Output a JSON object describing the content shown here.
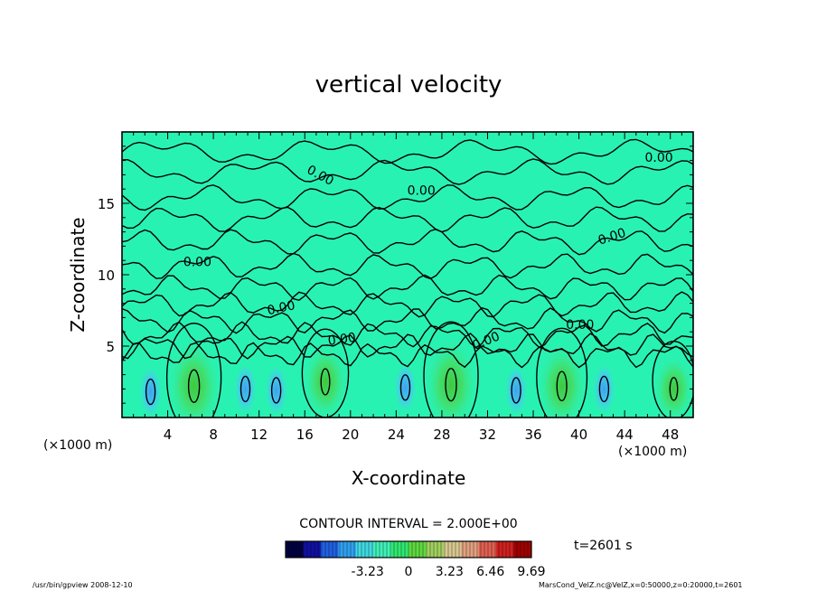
{
  "chart_data": {
    "type": "heatmap",
    "title": "vertical velocity",
    "xlabel": "X-coordinate",
    "ylabel": "Z-coordinate",
    "x_unit_left": "(×1000 m)",
    "x_unit_right": "(×1000 m)",
    "xlim": [
      0,
      50
    ],
    "ylim": [
      0,
      20
    ],
    "x_ticks": [
      4,
      8,
      12,
      16,
      20,
      24,
      28,
      32,
      36,
      40,
      44,
      48
    ],
    "y_ticks": [
      5,
      10,
      15
    ],
    "contour_interval_text": "CONTOUR INTERVAL = 2.000E+00",
    "contour_labels": [
      {
        "text": "0.00",
        "x": 17.2,
        "y": 16.7,
        "angle": 28
      },
      {
        "text": "0.00",
        "x": 26.2,
        "y": 15.6,
        "angle": 0
      },
      {
        "text": "0.00",
        "x": 47.0,
        "y": 17.9,
        "angle": 0
      },
      {
        "text": "0.00",
        "x": 43.0,
        "y": 12.4,
        "angle": -18
      },
      {
        "text": "0.00",
        "x": 6.6,
        "y": 10.6,
        "angle": 0
      },
      {
        "text": "0.00",
        "x": 14.0,
        "y": 7.4,
        "angle": -12
      },
      {
        "text": "0.00",
        "x": 19.3,
        "y": 5.2,
        "angle": -8
      },
      {
        "text": "0.00",
        "x": 32.0,
        "y": 5.1,
        "angle": -22
      },
      {
        "text": "0.00",
        "x": 40.1,
        "y": 6.2,
        "angle": 0
      }
    ],
    "colorbar": {
      "range": [
        -9.69,
        9.69
      ],
      "tick_labels": [
        "-3.23",
        "0",
        "3.23",
        "6.46",
        "9.69"
      ],
      "tick_values": [
        -3.23,
        0,
        3.23,
        6.46,
        9.69
      ],
      "colors": [
        "#000040",
        "#1010a0",
        "#2060e0",
        "#30a0f0",
        "#40d8e0",
        "#40f0b8",
        "#30e870",
        "#60d840",
        "#a0d060",
        "#d8c890",
        "#e0a080",
        "#e06050",
        "#d02020",
        "#a00000"
      ]
    },
    "updrafts": [
      {
        "x": 6.3,
        "y": 2.2,
        "strength": 1.0
      },
      {
        "x": 17.8,
        "y": 2.5,
        "strength": 0.8
      },
      {
        "x": 28.8,
        "y": 2.3,
        "strength": 1.0
      },
      {
        "x": 38.5,
        "y": 2.2,
        "strength": 0.9
      },
      {
        "x": 48.3,
        "y": 2.0,
        "strength": 0.7
      }
    ],
    "downdrafts": [
      {
        "x": 2.5,
        "y": 1.8
      },
      {
        "x": 10.8,
        "y": 2.0
      },
      {
        "x": 13.5,
        "y": 1.9
      },
      {
        "x": 24.8,
        "y": 2.1
      },
      {
        "x": 34.5,
        "y": 1.9
      },
      {
        "x": 42.2,
        "y": 2.0
      }
    ]
  },
  "time_label": "t=2601 s",
  "footer_left": "/usr/bin/gpview   2008-12-10",
  "footer_right": "MarsCond_VelZ.nc@VelZ,x=0:50000,z=0:20000,t=2601"
}
